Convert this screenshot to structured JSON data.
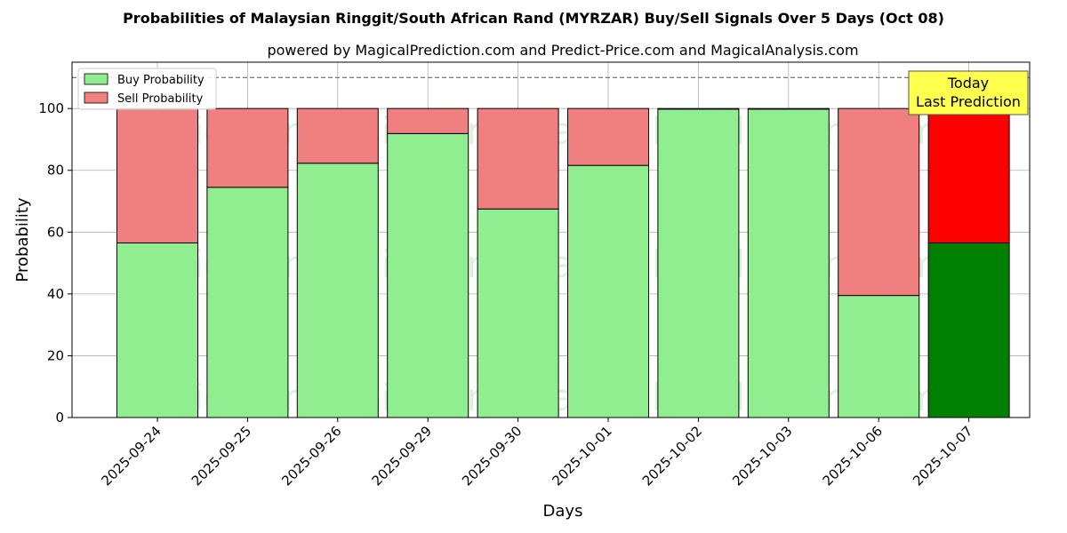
{
  "chart_data": {
    "type": "bar",
    "stacked": true,
    "title": "Probabilities of Malaysian Ringgit/South African Rand (MYRZAR) Buy/Sell Signals Over 5 Days (Oct 08)",
    "subtitle": "powered by MagicalPrediction.com and Predict-Price.com and MagicalAnalysis.com",
    "xlabel": "Days",
    "ylabel": "Probability",
    "ylim": [
      0,
      115
    ],
    "yticks": [
      0,
      20,
      40,
      60,
      80,
      100
    ],
    "grid": true,
    "legend_position": "top-left",
    "categories": [
      "2025-09-24",
      "2025-09-25",
      "2025-09-26",
      "2025-09-29",
      "2025-09-30",
      "2025-10-01",
      "2025-10-02",
      "2025-10-03",
      "2025-10-06",
      "2025-10-07"
    ],
    "series": [
      {
        "name": "Buy Probability",
        "values": [
          56.5,
          74.5,
          82.3,
          91.9,
          67.5,
          81.6,
          99.8,
          99.8,
          39.5,
          56.5
        ]
      },
      {
        "name": "Sell Probability",
        "values": [
          43.5,
          25.5,
          17.7,
          8.1,
          32.5,
          18.4,
          0.2,
          0.2,
          60.5,
          43.5
        ]
      }
    ],
    "colors": {
      "buy": "#90ee90",
      "sell": "#f08080",
      "buy_highlight": "#008000",
      "sell_highlight": "#ff0000",
      "annotation_bg": "#ffff4d"
    },
    "highlight_index": 9,
    "reference_line": 110,
    "annotation": {
      "line1": "Today",
      "line2": "Last Prediction"
    },
    "watermarks": [
      "MagicalAnalysis.com",
      "MagicalPrediction.com"
    ]
  }
}
